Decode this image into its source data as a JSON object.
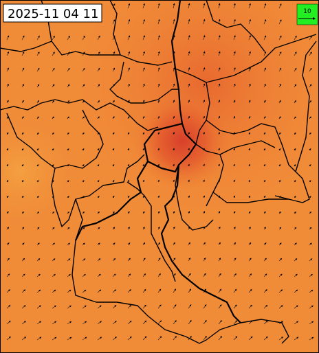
{
  "timestamp": "2025-11 04 11",
  "legend": {
    "label": "10"
  }
}
